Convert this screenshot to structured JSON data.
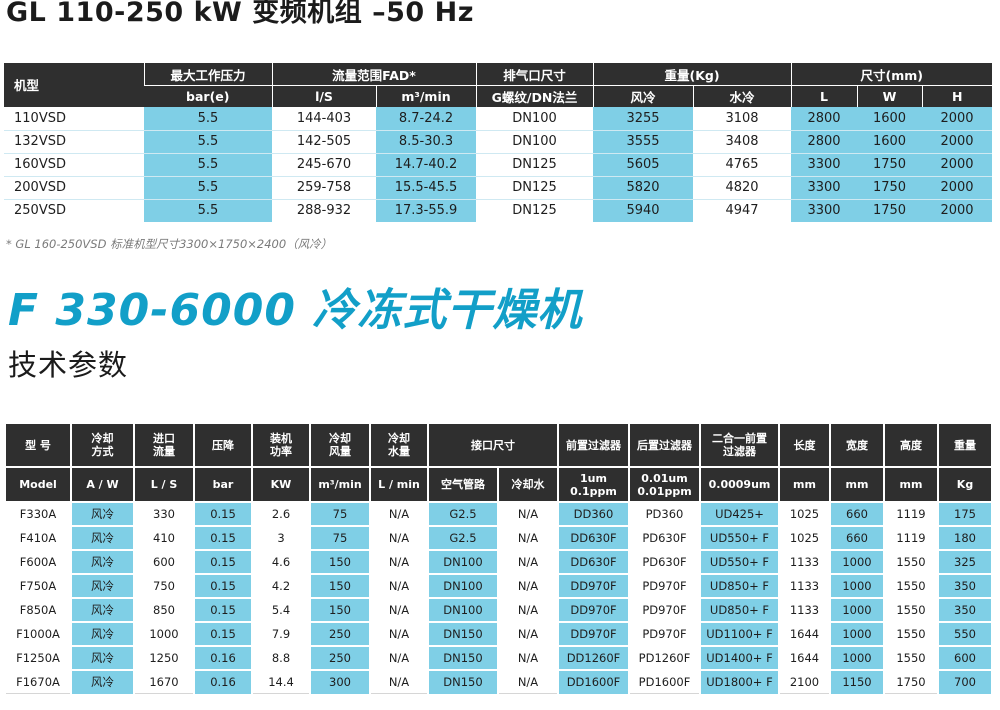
{
  "top_title": "GL 110-250 kW 变频机组 –50 Hz",
  "table1": {
    "header1": [
      "机型",
      "最大工作压力",
      "流量范围FAD*",
      "排气口尺寸",
      "重量(Kg)",
      "尺寸(mm)"
    ],
    "header2": [
      "bar(e)",
      "l/S",
      "m³/min",
      "G螺纹/DN法兰",
      "风冷",
      "水冷",
      "L",
      "W",
      "H"
    ],
    "rows": [
      [
        "110VSD",
        "5.5",
        "144-403",
        "8.7-24.2",
        "DN100",
        "3255",
        "3108",
        "2800",
        "1600",
        "2000"
      ],
      [
        "132VSD",
        "5.5",
        "142-505",
        "8.5-30.3",
        "DN100",
        "3555",
        "3408",
        "2800",
        "1600",
        "2000"
      ],
      [
        "160VSD",
        "5.5",
        "245-670",
        "14.7-40.2",
        "DN125",
        "5605",
        "4765",
        "3300",
        "1750",
        "2000"
      ],
      [
        "200VSD",
        "5.5",
        "259-758",
        "15.5-45.5",
        "DN125",
        "5820",
        "4820",
        "3300",
        "1750",
        "2000"
      ],
      [
        "250VSD",
        "5.5",
        "288-932",
        "17.3-55.9",
        "DN125",
        "5940",
        "4947",
        "3300",
        "1750",
        "2000"
      ]
    ]
  },
  "note": "* GL 160-250VSD 标准机型尺寸3300×1750×2400（风冷）",
  "dryer_title": "F 330-6000 冷冻式干燥机",
  "sub_title": "技术参数",
  "table2": {
    "header1": [
      "型 号",
      "冷却方式",
      "进口流量",
      "压降",
      "装机功率",
      "冷却风量",
      "冷却水量",
      "接口尺寸",
      "前置过滤器",
      "后置过滤器",
      "二合一前置过滤器",
      "长度",
      "宽度",
      "高度",
      "重量"
    ],
    "header2": [
      "Model",
      "A / W",
      "L / S",
      "bar",
      "KW",
      "m³/min",
      "L / min",
      "空气管路",
      "冷却水",
      "1um 0.1ppm",
      "0.01um 0.01ppm",
      "0.0009um",
      "mm",
      "mm",
      "mm",
      "Kg"
    ],
    "rows": [
      [
        "F330A",
        "风冷",
        "330",
        "0.15",
        "2.6",
        "75",
        "N/A",
        "G2.5",
        "N/A",
        "DD360",
        "PD360",
        "UD425+",
        "1025",
        "660",
        "1119",
        "175"
      ],
      [
        "F410A",
        "风冷",
        "410",
        "0.15",
        "3",
        "75",
        "N/A",
        "G2.5",
        "N/A",
        "DD630F",
        "PD630F",
        "UD550+ F",
        "1025",
        "660",
        "1119",
        "180"
      ],
      [
        "F600A",
        "风冷",
        "600",
        "0.15",
        "4.6",
        "150",
        "N/A",
        "DN100",
        "N/A",
        "DD630F",
        "PD630F",
        "UD550+ F",
        "1133",
        "1000",
        "1550",
        "325"
      ],
      [
        "F750A",
        "风冷",
        "750",
        "0.15",
        "4.2",
        "150",
        "N/A",
        "DN100",
        "N/A",
        "DD970F",
        "PD970F",
        "UD850+ F",
        "1133",
        "1000",
        "1550",
        "350"
      ],
      [
        "F850A",
        "风冷",
        "850",
        "0.15",
        "5.4",
        "150",
        "N/A",
        "DN100",
        "N/A",
        "DD970F",
        "PD970F",
        "UD850+ F",
        "1133",
        "1000",
        "1550",
        "350"
      ],
      [
        "F1000A",
        "风冷",
        "1000",
        "0.15",
        "7.9",
        "250",
        "N/A",
        "DN150",
        "N/A",
        "DD970F",
        "PD970F",
        "UD1100+ F",
        "1644",
        "1000",
        "1550",
        "550"
      ],
      [
        "F1250A",
        "风冷",
        "1250",
        "0.16",
        "8.8",
        "250",
        "N/A",
        "DN150",
        "N/A",
        "DD1260F",
        "PD1260F",
        "UD1400+ F",
        "1644",
        "1000",
        "1550",
        "600"
      ],
      [
        "F1670A",
        "风冷",
        "1670",
        "0.16",
        "14.4",
        "300",
        "N/A",
        "DN150",
        "N/A",
        "DD1600F",
        "PD1600F",
        "UD1800+ F",
        "2100",
        "1150",
        "1750",
        "700"
      ]
    ]
  },
  "colors": {
    "header_bg": "#2f2f2f",
    "highlight": "#7fcfe6",
    "title_blue": "#129fc8"
  }
}
